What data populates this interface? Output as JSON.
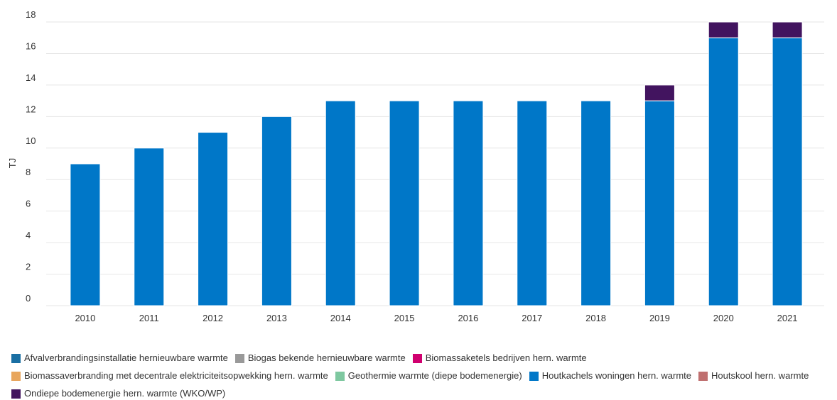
{
  "chart_data": {
    "type": "stacked_bar",
    "y_label": "TJ",
    "categories": [
      "2010",
      "2011",
      "2012",
      "2013",
      "2014",
      "2015",
      "2016",
      "2017",
      "2018",
      "2019",
      "2020",
      "2021"
    ],
    "series": [
      {
        "name": "Afvalverbrandingsinstallatie hernieuwbare warmte",
        "color": "#1a6fa3",
        "values": [
          0,
          0,
          0,
          0,
          0,
          0,
          0,
          0,
          0,
          0,
          0,
          0
        ]
      },
      {
        "name": "Biogas bekende hernieuwbare warmte",
        "color": "#999999",
        "values": [
          0,
          0,
          0,
          0,
          0,
          0,
          0,
          0,
          0,
          0,
          0,
          0
        ]
      },
      {
        "name": "Biomassaketels bedrijven hern. warmte",
        "color": "#d0006f",
        "values": [
          0,
          0,
          0,
          0,
          0,
          0,
          0,
          0,
          0,
          0,
          0,
          0
        ]
      },
      {
        "name": "Biomassaverbranding met decentrale elektriciteitsopwekking hern. warmte",
        "color": "#e8a65d",
        "values": [
          0,
          0,
          0,
          0,
          0,
          0,
          0,
          0,
          0,
          0,
          0,
          0
        ]
      },
      {
        "name": "Geothermie warmte (diepe bodemenergie)",
        "color": "#7ec8a0",
        "values": [
          0,
          0,
          0,
          0,
          0,
          0,
          0,
          0,
          0,
          0,
          0,
          0
        ]
      },
      {
        "name": "Houtkachels woningen hern. warmte",
        "color": "#0077c8",
        "values": [
          9,
          10,
          11,
          12,
          13,
          13,
          13,
          13,
          13,
          13,
          17,
          17
        ]
      },
      {
        "name": "Houtskool hern. warmte",
        "color": "#c07070",
        "values": [
          0,
          0,
          0,
          0,
          0,
          0,
          0,
          0,
          0,
          0,
          0,
          0
        ]
      },
      {
        "name": "Ondiepe bodemenergie hern. warmte (WKO/WP)",
        "color": "#42145f",
        "values": [
          0,
          0,
          0,
          0,
          0,
          0,
          0,
          0,
          0,
          1,
          1,
          1
        ]
      }
    ],
    "ylim": [
      0,
      18
    ],
    "yticks": [
      0,
      2,
      4,
      6,
      8,
      10,
      12,
      14,
      16,
      18
    ],
    "grid": true
  }
}
